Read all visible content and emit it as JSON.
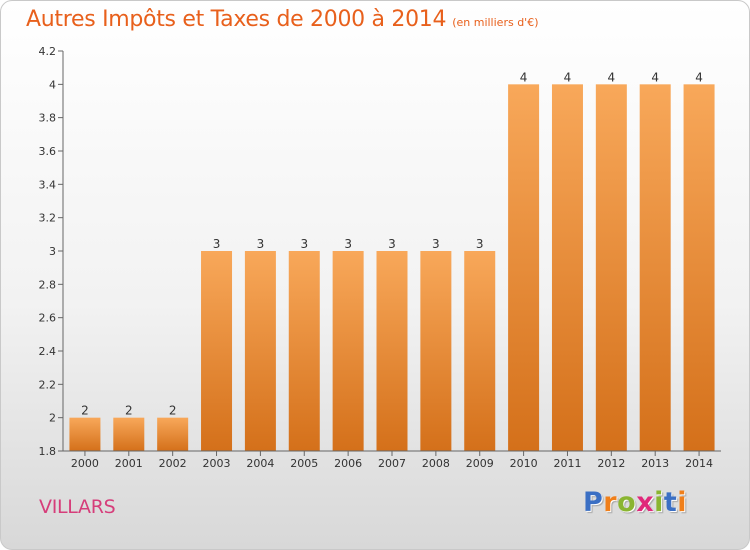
{
  "header": {
    "title": "Autres Impôts et Taxes de 2000 à 2014",
    "subtitle": "(en milliers d'€)"
  },
  "footer": {
    "place": "VILLARS",
    "logo_letters": [
      "P",
      "r",
      "o",
      "x",
      "i",
      "t",
      "i"
    ],
    "logo_colors": [
      "#3b6fc4",
      "#f07f1a",
      "#8ab531",
      "#e0287a",
      "#8ab531",
      "#3b6fc4",
      "#f07f1a"
    ]
  },
  "colors": {
    "bar_top": "#f8a85a",
    "bar_bottom": "#d4701a",
    "accent": "#e8601c"
  },
  "chart_data": {
    "type": "bar",
    "title": "Autres Impôts et Taxes de 2000 à 2014",
    "subtitle": "(en milliers d'€)",
    "categories": [
      "2000",
      "2001",
      "2002",
      "2003",
      "2004",
      "2005",
      "2006",
      "2007",
      "2008",
      "2009",
      "2010",
      "2011",
      "2012",
      "2013",
      "2014"
    ],
    "values": [
      2,
      2,
      2,
      3,
      3,
      3,
      3,
      3,
      3,
      3,
      4,
      4,
      4,
      4,
      4
    ],
    "data_labels": [
      "2",
      "2",
      "2",
      "3",
      "3",
      "3",
      "3",
      "3",
      "3",
      "3",
      "4",
      "4",
      "4",
      "4",
      "4"
    ],
    "ylim": [
      1.8,
      4.2
    ],
    "yticks": [
      1.8,
      2,
      2.2,
      2.4,
      2.6,
      2.8,
      3,
      3.2,
      3.4,
      3.6,
      3.8,
      4,
      4.2
    ],
    "ytick_labels": [
      "1.8",
      "2",
      "2.2",
      "2.4",
      "2.6",
      "2.8",
      "3",
      "3.2",
      "3.4",
      "3.6",
      "3.8",
      "4",
      "4.2"
    ],
    "grid": false,
    "legend": "none"
  }
}
